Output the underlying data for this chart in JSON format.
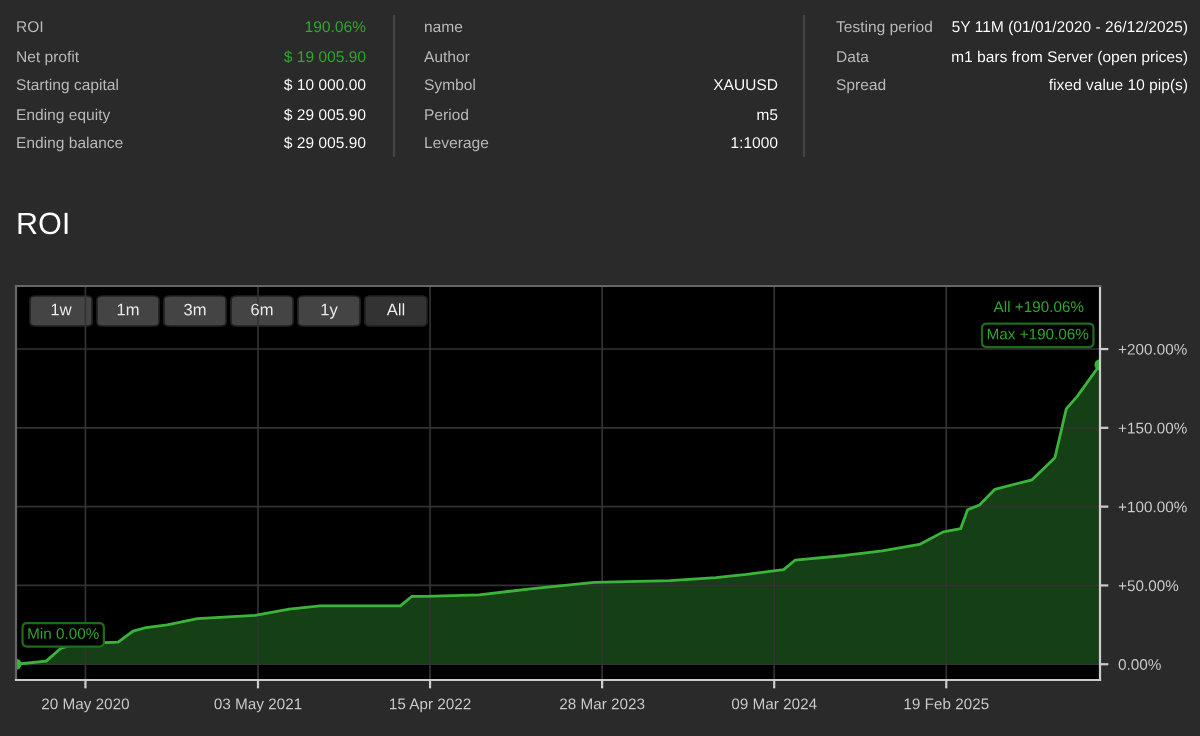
{
  "chart_data": [
    {
      "type": "other",
      "annotations": [
        "ROI",
        "190.06%",
        "Net profit",
        "$ 19 005.90",
        "Starting capital",
        "$ 10 000.00",
        "Ending equity",
        "$ 29 005.90",
        "Ending balance",
        "$ 29 005.90",
        "name",
        "Author",
        "Symbol",
        "XAUUSD",
        "Period",
        "m5",
        "Leverage",
        "1:1000",
        "Testing period",
        "5Y 11M (01/01/2020 - 26/12/2025)",
        "Data",
        "m1 bars from Server (open prices)",
        "Spread",
        "fixed value 10 pip(s)"
      ]
    },
    {
      "type": "area",
      "title": "ROI",
      "x": [
        "2020-01-01",
        "2020-03-02",
        "2020-03-31",
        "2020-05-01",
        "2020-07-25",
        "2020-08-24",
        "2020-09-16",
        "2020-11-01",
        "2021-01-01",
        "2021-04-27",
        "2021-07-05",
        "2021-09-05",
        "2022-02-14",
        "2022-03-09",
        "2022-04-08",
        "2022-07-23",
        "2022-11-08",
        "2023-03-12",
        "2023-08-12",
        "2023-11-12",
        "2024-01-13",
        "2024-03-28",
        "2024-04-20",
        "2024-07-29",
        "2024-10-13",
        "2024-12-27",
        "2025-02-13",
        "2025-03-20",
        "2025-04-03",
        "2025-04-27",
        "2025-05-28",
        "2025-08-11",
        "2025-09-26",
        "2025-10-19",
        "2025-11-10",
        "2025-12-26"
      ],
      "series": [
        {
          "color": "#3cb43c",
          "values": [
            0,
            2,
            10,
            13,
            14,
            21,
            23,
            25,
            29,
            31,
            35,
            37,
            37,
            43,
            43,
            44,
            48,
            52,
            53,
            55,
            57,
            60,
            66,
            69,
            72,
            76,
            84,
            86,
            98,
            101,
            111,
            117,
            131,
            162,
            170,
            190.06
          ]
        }
      ],
      "xlim": [
        "2020-01-01",
        "2025-12-26"
      ],
      "xticks": [
        {
          "value": "2020-05-20",
          "label": "20 May 2020"
        },
        {
          "value": "2021-05-03",
          "label": "03 May 2021"
        },
        {
          "value": "2022-04-15",
          "label": "15 Apr 2022"
        },
        {
          "value": "2023-03-28",
          "label": "28 Mar 2023"
        },
        {
          "value": "2024-03-09",
          "label": "09 Mar 2024"
        },
        {
          "value": "2025-02-19",
          "label": "19 Feb 2025"
        }
      ],
      "ylim": [
        -10,
        240
      ],
      "yticks": [
        {
          "value": 0,
          "label": "0.00%"
        },
        {
          "value": 50,
          "label": "+50.00%"
        },
        {
          "value": 100,
          "label": "+100.00%"
        },
        {
          "value": 150,
          "label": "+150.00%"
        },
        {
          "value": 200,
          "label": "+200.00%"
        }
      ],
      "grid": true,
      "annotations": [
        "1w",
        "1m",
        "3m",
        "6m",
        "1y",
        "All",
        "All +190.06%",
        {
          "text": "Max +190.06%",
          "x": "2025-12-26",
          "y": 190.06
        },
        {
          "text": "Min 0.00%",
          "x": "2020-01-01",
          "y": 0
        }
      ]
    }
  ]
}
